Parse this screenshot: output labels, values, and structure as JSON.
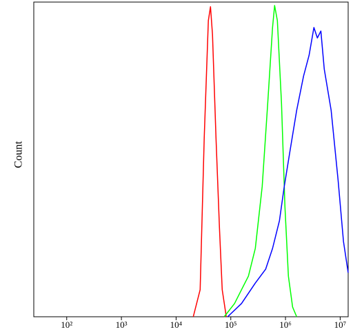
{
  "chart_data": {
    "type": "line",
    "ylabel": "Count",
    "xscale": "log",
    "xlim": [
      25,
      14000000
    ],
    "ylim": [
      0,
      100
    ],
    "xticks": [
      {
        "value": 100,
        "label": "10²"
      },
      {
        "value": 1000,
        "label": "10³"
      },
      {
        "value": 10000,
        "label": "10⁴"
      },
      {
        "value": 100000,
        "label": "10⁵"
      },
      {
        "value": 1000000,
        "label": "10⁶"
      },
      {
        "value": 10000000,
        "label": "10⁷"
      }
    ],
    "series": [
      {
        "color": "#ff0000",
        "x": [
          20600,
          27500,
          32700,
          38900,
          42500,
          46300,
          53600,
          62000,
          69600,
          82800
        ],
        "values": [
          0,
          8.6,
          56.8,
          94.1,
          98.5,
          89.7,
          56.8,
          28.3,
          8.6,
          0
        ]
      },
      {
        "color": "#00ff00",
        "x": [
          75900,
          117000,
          157000,
          210000,
          281000,
          375000,
          473000,
          580000,
          632000,
          711000,
          846000,
          978000,
          1130000,
          1350000,
          1600000
        ],
        "values": [
          0,
          4.2,
          8.6,
          12.9,
          21.7,
          41.4,
          67.8,
          91.9,
          98.9,
          94.1,
          67.8,
          34.9,
          12.9,
          3.1,
          0
        ]
      },
      {
        "color": "#0000ff",
        "x": [
          87700,
          157000,
          281000,
          434000,
          580000,
          775000,
          950000,
          1200000,
          1600000,
          2140000,
          2700000,
          3310000,
          3830000,
          4430000,
          5120000,
          6840000,
          9140000,
          11500000,
          14000000
        ],
        "values": [
          0,
          4.2,
          10.7,
          15.1,
          21.7,
          30.5,
          41.4,
          52.4,
          65.6,
          76.5,
          83.1,
          91.9,
          88.6,
          90.8,
          78.7,
          65.6,
          43.6,
          23.9,
          14.0
        ]
      }
    ]
  }
}
